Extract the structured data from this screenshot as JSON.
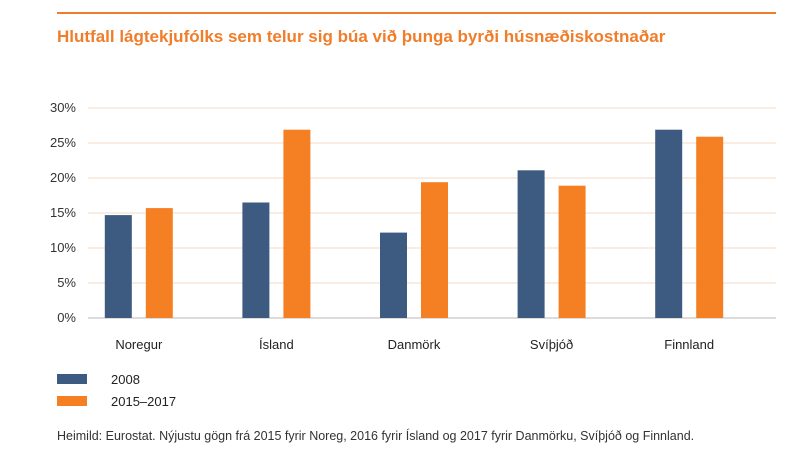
{
  "chart_data": {
    "type": "bar",
    "title": "Hlutfall lágtekjufólks sem telur sig búa við þunga byrði húsnæðiskostnaðar",
    "categories": [
      "Noregur",
      "Ísland",
      "Danmörk",
      "Svíþjóð",
      "Finnland"
    ],
    "series": [
      {
        "name": "2008",
        "color": "#3d5a80",
        "values": [
          14.7,
          16.5,
          12.2,
          21.1,
          26.9
        ]
      },
      {
        "name": "2015–2017",
        "color": "#f58024",
        "values": [
          15.7,
          26.9,
          19.4,
          18.9,
          25.9
        ]
      }
    ],
    "ylim": [
      0,
      30
    ],
    "yticks": [
      "0%",
      "5%",
      "10%",
      "15%",
      "20%",
      "25%",
      "30%"
    ],
    "grid": true,
    "legend_position": "bottom-left"
  },
  "source_note": "Heimild: Eurostat. Nýjustu gögn frá 2015 fyrir Noreg, 2016 fyrir Ísland og 2017 fyrir Danmörku, Svíþjóð og Finnland."
}
